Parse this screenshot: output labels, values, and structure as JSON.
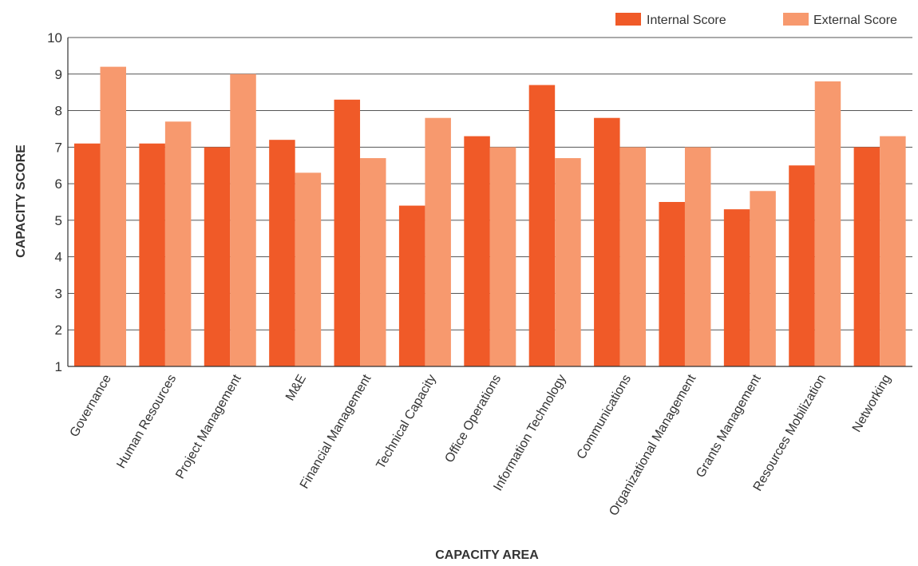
{
  "chart_data": {
    "type": "bar",
    "title": "",
    "xlabel": "CAPACITY AREA",
    "ylabel": "CAPACITY SCORE",
    "ylim": [
      1,
      10
    ],
    "yticks": [
      1,
      2,
      3,
      4,
      5,
      6,
      7,
      8,
      9,
      10
    ],
    "grid": true,
    "legend_position": "top-right",
    "categories": [
      "Governance",
      "Human Resources",
      "Project Management",
      "M&E",
      "Financial Management",
      "Technical Capacity",
      "Office Operations",
      "Information Technology",
      "Communications",
      "Organizational Management",
      "Grants Management",
      "Resources Mobilization",
      "Networking"
    ],
    "series": [
      {
        "name": "Internal Score",
        "color": "#f05a28",
        "values": [
          7.1,
          7.1,
          7.0,
          7.2,
          8.3,
          5.4,
          7.3,
          8.7,
          7.8,
          5.5,
          5.3,
          6.5,
          7.0
        ]
      },
      {
        "name": "External Score",
        "color": "#f7996e",
        "values": [
          9.2,
          7.7,
          9.0,
          6.3,
          6.7,
          7.8,
          7.0,
          6.7,
          7.0,
          7.0,
          5.8,
          8.8,
          7.3
        ]
      }
    ]
  }
}
